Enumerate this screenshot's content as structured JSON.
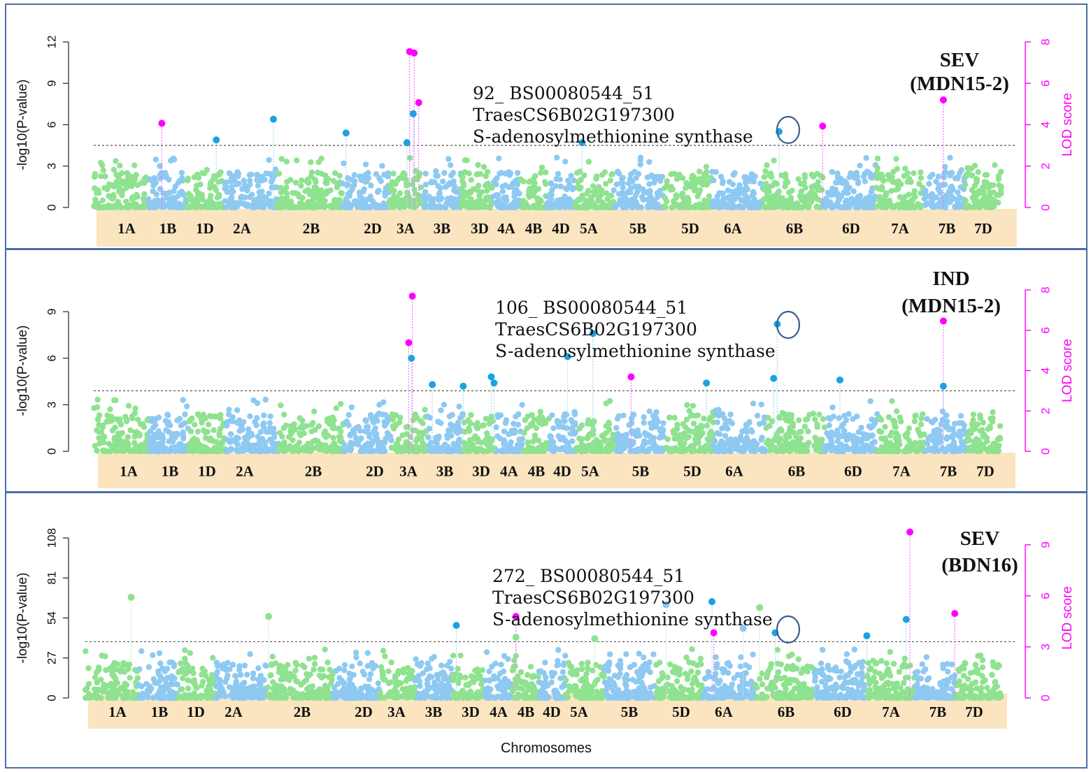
{
  "x_axis_label": "Chromosomes",
  "colors": {
    "panel_border": "#4a6fa5",
    "chrom_band": "#fbe5c0",
    "lod_axis": "#ff00ff",
    "threshold": "#555555",
    "points_green": "#8fe28f",
    "points_blue": "#8ec9f2",
    "sig_blue": "#1aa3e0",
    "sig_magenta": "#ff00ff",
    "circle": "#3b5f8a"
  },
  "chart_data": [
    {
      "type": "scatter",
      "title": "SEV\n(MDN15-2)",
      "title_lines": [
        "SEV",
        "(MDN15-2)"
      ],
      "ylabel": "-log10(P-value)",
      "y2label": "LOD score",
      "ylim": [
        0,
        12
      ],
      "yticks": [
        0,
        3,
        6,
        9,
        12
      ],
      "y2lim": [
        0,
        8
      ],
      "y2ticks": [
        0,
        2,
        4,
        6,
        8
      ],
      "threshold": 4.5,
      "chromosomes": [
        "1A",
        "1B",
        "1D",
        "2A",
        "2B",
        "2D",
        "3A",
        "3B",
        "3D",
        "4A",
        "4B",
        "4D",
        "5A",
        "5B",
        "5D",
        "6A",
        "6B",
        "6D",
        "7A",
        "7B",
        "7D"
      ],
      "annotation": [
        "92_ BS00080544_51",
        "TraesCS6B02G197300",
        "S-adenosylmethionine synthase"
      ],
      "circled": {
        "pos": 0.755,
        "y": 5.5
      },
      "significant": [
        {
          "pos": 0.075,
          "y": 6.1,
          "type": "lod"
        },
        {
          "pos": 0.135,
          "y": 4.9,
          "type": "gwas"
        },
        {
          "pos": 0.198,
          "y": 6.4,
          "type": "gwas"
        },
        {
          "pos": 0.278,
          "y": 5.4,
          "type": "gwas"
        },
        {
          "pos": 0.348,
          "y": 11.3,
          "type": "lod"
        },
        {
          "pos": 0.353,
          "y": 11.2,
          "type": "lod"
        },
        {
          "pos": 0.358,
          "y": 7.6,
          "type": "lod"
        },
        {
          "pos": 0.352,
          "y": 6.8,
          "type": "gwas"
        },
        {
          "pos": 0.345,
          "y": 4.7,
          "type": "gwas"
        },
        {
          "pos": 0.538,
          "y": 4.7,
          "type": "gwas"
        },
        {
          "pos": 0.755,
          "y": 5.5,
          "type": "gwas"
        },
        {
          "pos": 0.803,
          "y": 5.9,
          "type": "lod"
        },
        {
          "pos": 0.936,
          "y": 7.8,
          "type": "lod"
        }
      ]
    },
    {
      "type": "scatter",
      "title": "IND\n(MDN15-2)",
      "title_lines": [
        "IND",
        "(MDN15-2)"
      ],
      "ylabel": "-log10(P-value)",
      "y2label": "LOD score",
      "ylim": [
        0,
        10.4
      ],
      "yticks": [
        0,
        3,
        6,
        9
      ],
      "y2lim": [
        0,
        8
      ],
      "y2ticks": [
        0,
        2,
        4,
        6,
        8
      ],
      "threshold": 3.9,
      "chromosomes": [
        "1A",
        "1B",
        "1D",
        "2A",
        "2B",
        "2D",
        "3A",
        "3B",
        "3D",
        "4A",
        "4B",
        "4D",
        "5A",
        "5B",
        "5D",
        "6A",
        "6B",
        "6D",
        "7A",
        "7B",
        "7D"
      ],
      "annotation": [
        "106_ BS00080544_51",
        "TraesCS6B02G197300",
        "S-adenosylmethionine synthase"
      ],
      "circled": {
        "pos": 0.753,
        "y": 8.2
      },
      "significant": [
        {
          "pos": 0.347,
          "y": 7.0,
          "type": "lod"
        },
        {
          "pos": 0.351,
          "y": 10.0,
          "type": "lod"
        },
        {
          "pos": 0.35,
          "y": 6.0,
          "type": "gwas"
        },
        {
          "pos": 0.373,
          "y": 4.3,
          "type": "gwas"
        },
        {
          "pos": 0.407,
          "y": 4.2,
          "type": "gwas"
        },
        {
          "pos": 0.438,
          "y": 4.8,
          "type": "gwas"
        },
        {
          "pos": 0.441,
          "y": 4.4,
          "type": "gwas"
        },
        {
          "pos": 0.522,
          "y": 6.1,
          "type": "gwas"
        },
        {
          "pos": 0.55,
          "y": 7.6,
          "type": "gwas"
        },
        {
          "pos": 0.592,
          "y": 4.8,
          "type": "lod"
        },
        {
          "pos": 0.675,
          "y": 4.4,
          "type": "gwas"
        },
        {
          "pos": 0.749,
          "y": 4.7,
          "type": "gwas"
        },
        {
          "pos": 0.753,
          "y": 8.2,
          "type": "gwas"
        },
        {
          "pos": 0.822,
          "y": 4.6,
          "type": "gwas"
        },
        {
          "pos": 0.936,
          "y": 8.4,
          "type": "lod"
        },
        {
          "pos": 0.936,
          "y": 4.2,
          "type": "gwas"
        }
      ]
    },
    {
      "type": "scatter",
      "title": "SEV\n(BDN16)",
      "title_lines": [
        "SEV",
        "(BDN16)"
      ],
      "ylabel": "-log10(P-value)",
      "y2label": "LOD score",
      "ylim": [
        0,
        108
      ],
      "yticks": [
        0,
        27,
        54,
        81,
        108
      ],
      "y2lim": [
        0,
        9.4
      ],
      "y2ticks": [
        0,
        3,
        6,
        9
      ],
      "threshold": 38,
      "chromosomes": [
        "1A",
        "1B",
        "1D",
        "2A",
        "2B",
        "2D",
        "3A",
        "3B",
        "3D",
        "4A",
        "4B",
        "4D",
        "5A",
        "5B",
        "5D",
        "6A",
        "6B",
        "6D",
        "7A",
        "7B",
        "7D"
      ],
      "annotation": [
        "272_ BS00080544_51",
        "TraesCS6B02G197300",
        "S-adenosylmethionine synthase"
      ],
      "circled": {
        "pos": 0.753,
        "y": 44
      },
      "significant": [
        {
          "pos": 0.05,
          "y": 68,
          "type": "gwas_green"
        },
        {
          "pos": 0.2,
          "y": 55,
          "type": "gwas_green"
        },
        {
          "pos": 0.405,
          "y": 49,
          "type": "gwas"
        },
        {
          "pos": 0.47,
          "y": 55,
          "type": "lod"
        },
        {
          "pos": 0.47,
          "y": 41,
          "type": "gwas_green"
        },
        {
          "pos": 0.556,
          "y": 40,
          "type": "gwas_green"
        },
        {
          "pos": 0.634,
          "y": 63,
          "type": "gwas_light"
        },
        {
          "pos": 0.684,
          "y": 65,
          "type": "gwas"
        },
        {
          "pos": 0.686,
          "y": 44,
          "type": "lod"
        },
        {
          "pos": 0.718,
          "y": 47,
          "type": "gwas_light"
        },
        {
          "pos": 0.736,
          "y": 61,
          "type": "gwas_green"
        },
        {
          "pos": 0.753,
          "y": 44,
          "type": "gwas"
        },
        {
          "pos": 0.853,
          "y": 42,
          "type": "gwas"
        },
        {
          "pos": 0.896,
          "y": 53,
          "type": "gwas"
        },
        {
          "pos": 0.9,
          "y": 112,
          "type": "lod"
        },
        {
          "pos": 0.949,
          "y": 57,
          "type": "lod"
        }
      ]
    }
  ]
}
